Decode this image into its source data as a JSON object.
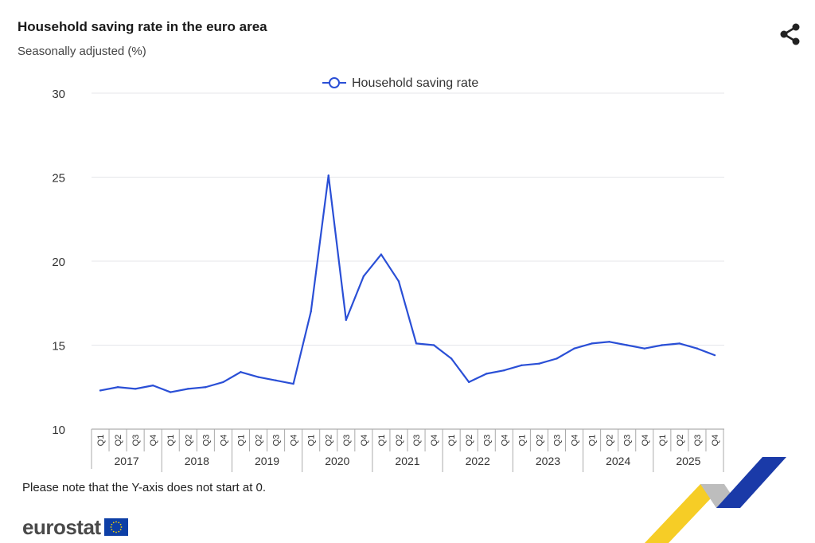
{
  "header": {
    "title": "Household saving rate in the euro area",
    "subtitle": "Seasonally adjusted (%)",
    "share_icon": "share-icon"
  },
  "footer": {
    "note": "Please note that the Y-axis does not start at 0.",
    "logo_text": "eurostat"
  },
  "colors": {
    "line": "#2a4fd6",
    "grid": "#e4e6ea",
    "axis_text": "#333333",
    "deco_yellow": "#f5c400",
    "deco_blue": "#1a3aa8",
    "deco_grey": "#b8b8b8"
  },
  "chart_data": {
    "type": "line",
    "title": "Household saving rate in the euro area",
    "subtitle": "Seasonally adjusted (%)",
    "ylim": [
      10,
      30
    ],
    "yticks": [
      10,
      15,
      20,
      25,
      30
    ],
    "grid": true,
    "legend_position": "top-center",
    "quarter_labels": [
      "Q1",
      "Q2",
      "Q3",
      "Q4"
    ],
    "years": [
      "2017",
      "2018",
      "2019",
      "2020",
      "2021",
      "2022",
      "2023",
      "2024",
      "2025"
    ],
    "x": [
      "2017-Q1",
      "2017-Q2",
      "2017-Q3",
      "2017-Q4",
      "2018-Q1",
      "2018-Q2",
      "2018-Q3",
      "2018-Q4",
      "2019-Q1",
      "2019-Q2",
      "2019-Q3",
      "2019-Q4",
      "2020-Q1",
      "2020-Q2",
      "2020-Q3",
      "2020-Q4",
      "2021-Q1",
      "2021-Q2",
      "2021-Q3",
      "2021-Q4",
      "2022-Q1",
      "2022-Q2",
      "2022-Q3",
      "2022-Q4",
      "2023-Q1",
      "2023-Q2",
      "2023-Q3",
      "2023-Q4",
      "2024-Q1",
      "2024-Q2",
      "2024-Q3",
      "2024-Q4",
      "2025-Q1",
      "2025-Q2",
      "2025-Q3",
      "2025-Q4"
    ],
    "series": [
      {
        "name": "Household saving rate",
        "values": [
          12.3,
          12.5,
          12.4,
          12.6,
          12.2,
          12.4,
          12.5,
          12.8,
          13.4,
          13.1,
          12.9,
          12.7,
          17.0,
          25.1,
          16.5,
          19.1,
          20.4,
          18.8,
          15.1,
          15.0,
          14.2,
          12.8,
          13.3,
          13.5,
          13.8,
          13.9,
          14.2,
          14.8,
          15.1,
          15.2,
          15.0,
          14.8,
          15.0,
          15.1,
          14.8,
          14.4
        ]
      }
    ]
  }
}
